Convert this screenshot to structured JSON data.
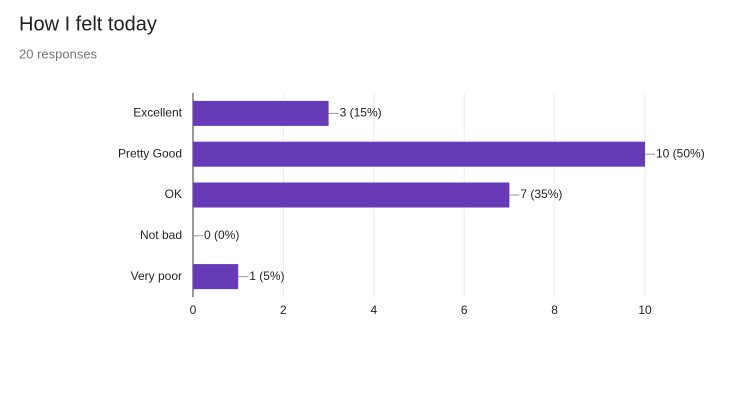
{
  "chart_data": {
    "type": "hbar",
    "title": "How I felt today",
    "subtitle": "20 responses",
    "categories": [
      "Excellent",
      "Pretty Good",
      "OK",
      "Not bad",
      "Very poor"
    ],
    "values": [
      3,
      10,
      7,
      0,
      1
    ],
    "value_labels": [
      "3 (15%)",
      "10 (50%)",
      "7 (35%)",
      "0 (0%)",
      "1 (5%)"
    ],
    "color": "#673ab7",
    "xlim": [
      0,
      10
    ],
    "xticks": [
      0,
      2,
      4,
      6,
      8,
      10
    ],
    "grid": true
  }
}
